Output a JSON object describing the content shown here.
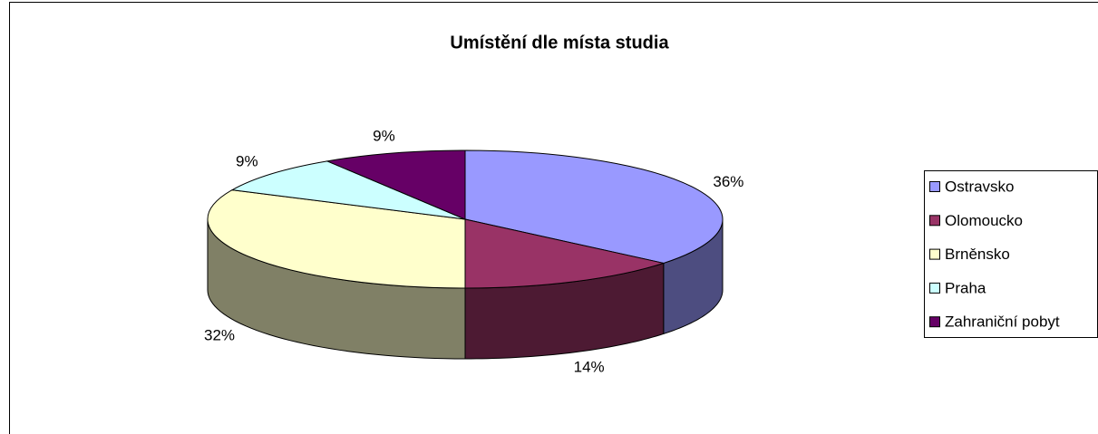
{
  "chart_data": {
    "type": "pie",
    "title": "Umístění dle místa studia",
    "categories": [
      "Ostravsko",
      "Olomoucko",
      "Brněnsko",
      "Praha",
      "Zahraniční pobyt"
    ],
    "values": [
      36,
      14,
      32,
      9,
      9
    ],
    "value_labels": [
      "36%",
      "14%",
      "32%",
      "9%",
      "9%"
    ],
    "colors": [
      "#9999ff",
      "#993366",
      "#ffffcc",
      "#ccffff",
      "#660066"
    ],
    "legend": "right"
  }
}
